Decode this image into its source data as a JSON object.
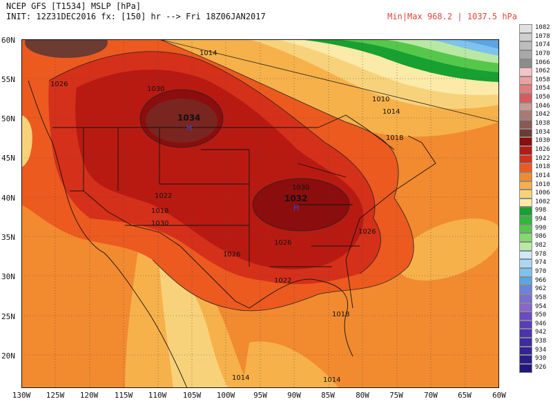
{
  "header": {
    "line1": "NCEP GFS [T1534] MSLP [hPa]",
    "line2": "INIT: 12Z31DEC2016 fx: [150] hr --> Fri 18Z06JAN2017",
    "minmax": "Min|Max 968.2 | 1037.5 hPa"
  },
  "axes": {
    "lat_labels": [
      "60N",
      "55N",
      "50N",
      "45N",
      "40N",
      "35N",
      "30N",
      "25N",
      "20N"
    ],
    "lon_labels": [
      "130W",
      "125W",
      "120W",
      "115W",
      "110W",
      "105W",
      "100W",
      "95W",
      "90W",
      "85W",
      "80W",
      "75W",
      "70W",
      "65W",
      "60W"
    ]
  },
  "map": {
    "isobar_labels": [
      "1014",
      "1026",
      "1030",
      "1034",
      "1010",
      "1014",
      "1018",
      "1030",
      "1032",
      "1026",
      "1022",
      "1018",
      "1030",
      "1026",
      "1026",
      "1022",
      "1018",
      "1014",
      "1014"
    ],
    "highs": [
      {
        "label": "H",
        "value": "1034"
      },
      {
        "label": "H",
        "value": "1032"
      }
    ]
  },
  "legend": {
    "entries": [
      {
        "value": "1082",
        "color": "#e0e0e0"
      },
      {
        "value": "1078",
        "color": "#cfcfcf"
      },
      {
        "value": "1074",
        "color": "#bdbdbd"
      },
      {
        "value": "1070",
        "color": "#a9a9a9"
      },
      {
        "value": "1066",
        "color": "#8c8c8c"
      },
      {
        "value": "1062",
        "color": "#f4c4c4"
      },
      {
        "value": "1058",
        "color": "#eda0a0"
      },
      {
        "value": "1054",
        "color": "#e27d7d"
      },
      {
        "value": "1050",
        "color": "#d85b5b"
      },
      {
        "value": "1046",
        "color": "#c89a94"
      },
      {
        "value": "1042",
        "color": "#a97a74"
      },
      {
        "value": "1038",
        "color": "#8a5a52"
      },
      {
        "value": "1034",
        "color": "#6d3b32"
      },
      {
        "value": "1030",
        "color": "#8b0d0d"
      },
      {
        "value": "1026",
        "color": "#b81a12"
      },
      {
        "value": "1022",
        "color": "#d5301a"
      },
      {
        "value": "1018",
        "color": "#ec5a1f"
      },
      {
        "value": "1014",
        "color": "#f28a30"
      },
      {
        "value": "1010",
        "color": "#f6b14a"
      },
      {
        "value": "1006",
        "color": "#f8d27a"
      },
      {
        "value": "1002",
        "color": "#fbeaa8"
      },
      {
        "value": "998",
        "color": "#18a030"
      },
      {
        "value": "994",
        "color": "#33b63c"
      },
      {
        "value": "990",
        "color": "#55c84c"
      },
      {
        "value": "986",
        "color": "#86d870"
      },
      {
        "value": "982",
        "color": "#b8e8a4"
      },
      {
        "value": "978",
        "color": "#cfe9f8"
      },
      {
        "value": "974",
        "color": "#a8d8f4"
      },
      {
        "value": "970",
        "color": "#7fc2ee"
      },
      {
        "value": "966",
        "color": "#5aa6e4"
      },
      {
        "value": "962",
        "color": "#6b84d8"
      },
      {
        "value": "958",
        "color": "#7a6fd0"
      },
      {
        "value": "954",
        "color": "#8a66cc"
      },
      {
        "value": "950",
        "color": "#6a4bc0"
      },
      {
        "value": "946",
        "color": "#5a3cb8"
      },
      {
        "value": "942",
        "color": "#4b32ae"
      },
      {
        "value": "938",
        "color": "#3e2aa2"
      },
      {
        "value": "934",
        "color": "#332396"
      },
      {
        "value": "930",
        "color": "#2a1d8a"
      },
      {
        "value": "926",
        "color": "#22187c"
      }
    ]
  }
}
